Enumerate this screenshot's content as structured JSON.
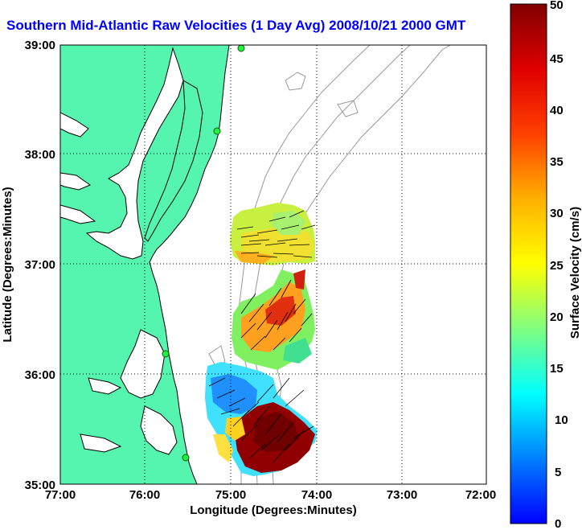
{
  "title": "Southern Mid-Atlantic Raw Velocities (1 Day Avg) 2008/10/21 2000 GMT",
  "x_axis": {
    "label": "Longitude (Degrees:Minutes)",
    "ticks": [
      "77:00",
      "76:00",
      "75:00",
      "74:00",
      "73:00",
      "72:00"
    ]
  },
  "y_axis": {
    "label": "Latitude (Degrees:Minutes)",
    "ticks": [
      "39:00",
      "38:00",
      "37:00",
      "36:00",
      "35:00"
    ]
  },
  "colorbar": {
    "label": "Surface Velocity (cm/s)",
    "ticks": [
      "50",
      "45",
      "40",
      "35",
      "30",
      "25",
      "20",
      "15",
      "10",
      "5",
      "0"
    ],
    "min": 0,
    "max": 50
  },
  "colors": {
    "land": "#55f5b0",
    "title": "#0000ff",
    "station": "#22ee44"
  },
  "grid": "dotted"
}
